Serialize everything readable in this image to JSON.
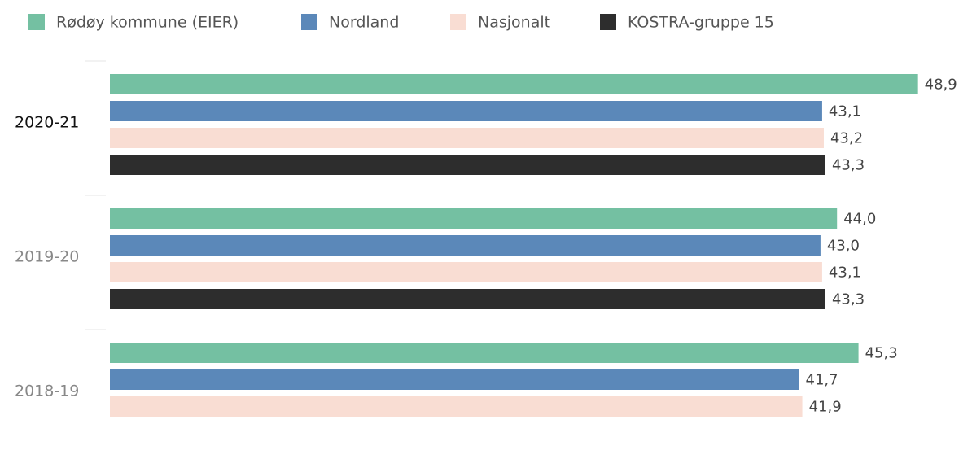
{
  "chart_data": {
    "type": "bar",
    "orientation": "horizontal",
    "categories": [
      "2020-21",
      "2019-20",
      "2018-19"
    ],
    "series": [
      {
        "name": "Rødøy kommune (EIER)",
        "color": "#74c0a2",
        "values": [
          48.9,
          44.0,
          45.3
        ],
        "value_labels": [
          "48,9",
          "44,0",
          "45,3"
        ]
      },
      {
        "name": "Nordland",
        "color": "#5b88b9",
        "values": [
          43.1,
          43.0,
          41.7
        ],
        "value_labels": [
          "43,1",
          "43,0",
          "41,7"
        ]
      },
      {
        "name": "Nasjonalt",
        "color": "#f9ddd3",
        "values": [
          43.2,
          43.1,
          41.9
        ],
        "value_labels": [
          "43,2",
          "43,1",
          "41,9"
        ]
      },
      {
        "name": "KOSTRA-gruppe 15",
        "color": "#2d2d2d",
        "values": [
          43.3,
          43.3,
          null
        ],
        "value_labels": [
          "43,3",
          "43,3",
          null
        ]
      }
    ],
    "xlim": [
      0,
      50
    ],
    "legend": "top"
  }
}
